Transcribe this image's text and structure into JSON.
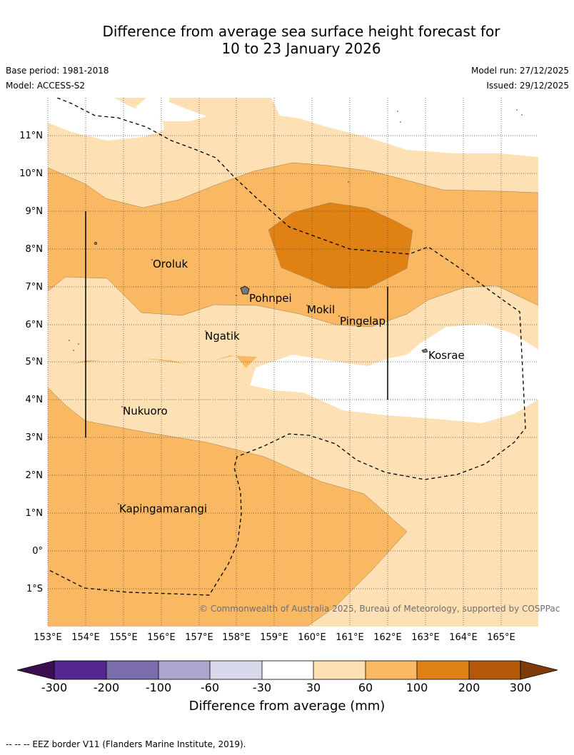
{
  "title": {
    "line1": "Difference from average sea surface height forecast for",
    "line2": "10 to 23 January 2026"
  },
  "meta": {
    "base_period": "Base period: 1981-2018",
    "model": "Model: ACCESS-S2",
    "model_run": "Model run: 27/12/2025",
    "issued": "Issued: 29/12/2025"
  },
  "axes": {
    "lon_labels": [
      "153°E",
      "154°E",
      "155°E",
      "156°E",
      "157°E",
      "158°E",
      "159°E",
      "160°E",
      "161°E",
      "162°E",
      "163°E",
      "164°E",
      "165°E"
    ],
    "lat_labels": [
      "11°N",
      "10°N",
      "9°N",
      "8°N",
      "7°N",
      "6°N",
      "5°N",
      "4°N",
      "3°N",
      "2°N",
      "1°N",
      "0°",
      "1°S"
    ]
  },
  "places": {
    "oroluk": "Oroluk",
    "pohnpei": "Pohnpei",
    "mokil": "Mokil",
    "pingelap": "Pingelap",
    "ngatik": "Ngatik",
    "kosrae": "Kosrae",
    "nukuoro": "Nukuoro",
    "kapingamarangi": "Kapingamarangi"
  },
  "copyright": "© Commonwealth of Australia 2025, Bureau of Meteorology, supported by COSPPac",
  "colorbar": {
    "ticks": [
      "-300",
      "-200",
      "-100",
      "-60",
      "-30",
      "30",
      "60",
      "100",
      "200",
      "300"
    ],
    "label": "Difference from average (mm)",
    "colors": [
      "#3b0f4f",
      "#54278f",
      "#7b6cab",
      "#aca6cf",
      "#d9d9ec",
      "#ffffff",
      "#fde0b4",
      "#fbb862",
      "#e08213",
      "#b35806",
      "#7f3b08"
    ]
  },
  "footer": "-- --  -- EEZ border V11 (Flanders Marine Institute, 2019)."
}
